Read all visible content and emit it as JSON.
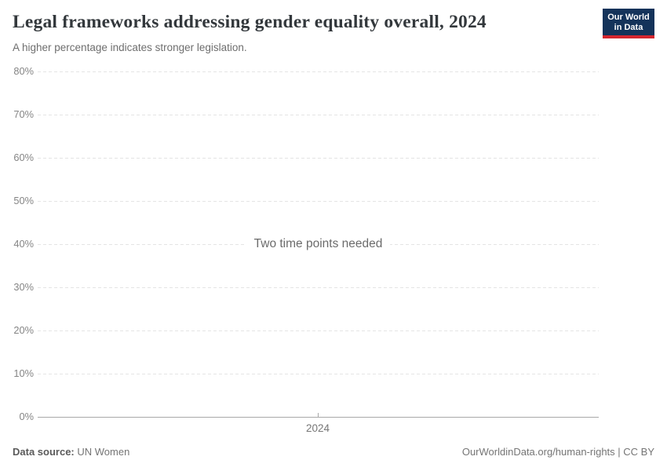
{
  "header": {
    "title": "Legal frameworks addressing gender equality overall, 2024",
    "subtitle": "A higher percentage indicates stronger legislation.",
    "logo": {
      "line1": "Our World",
      "line2": "in Data"
    }
  },
  "chart_data": {
    "type": "line",
    "title": "Legal frameworks addressing gender equality overall, 2024",
    "subtitle": "A higher percentage indicates stronger legislation.",
    "series": [],
    "message": "Two time points needed",
    "x": [
      2024
    ],
    "xticks": [
      "2024"
    ],
    "yticks": [
      "80%",
      "70%",
      "60%",
      "50%",
      "40%",
      "30%",
      "20%",
      "10%",
      "0%"
    ],
    "ylim": [
      0,
      80
    ],
    "ytick_step": 10,
    "grid": "horizontal-dashed",
    "legend": "none",
    "note": "No data series plotted; placeholder message shown because two time points are required."
  },
  "footer": {
    "source_label": "Data source:",
    "source_value": "UN Women",
    "link": "OurWorldinData.org/human-rights | CC BY"
  },
  "colors": {
    "logo_navy": "#14335a",
    "logo_red": "#d4262f",
    "title_text": "#33383c",
    "grid_line": "#e4e4e4",
    "axis_line": "#a8a8a8",
    "tick_label": "#858585"
  }
}
